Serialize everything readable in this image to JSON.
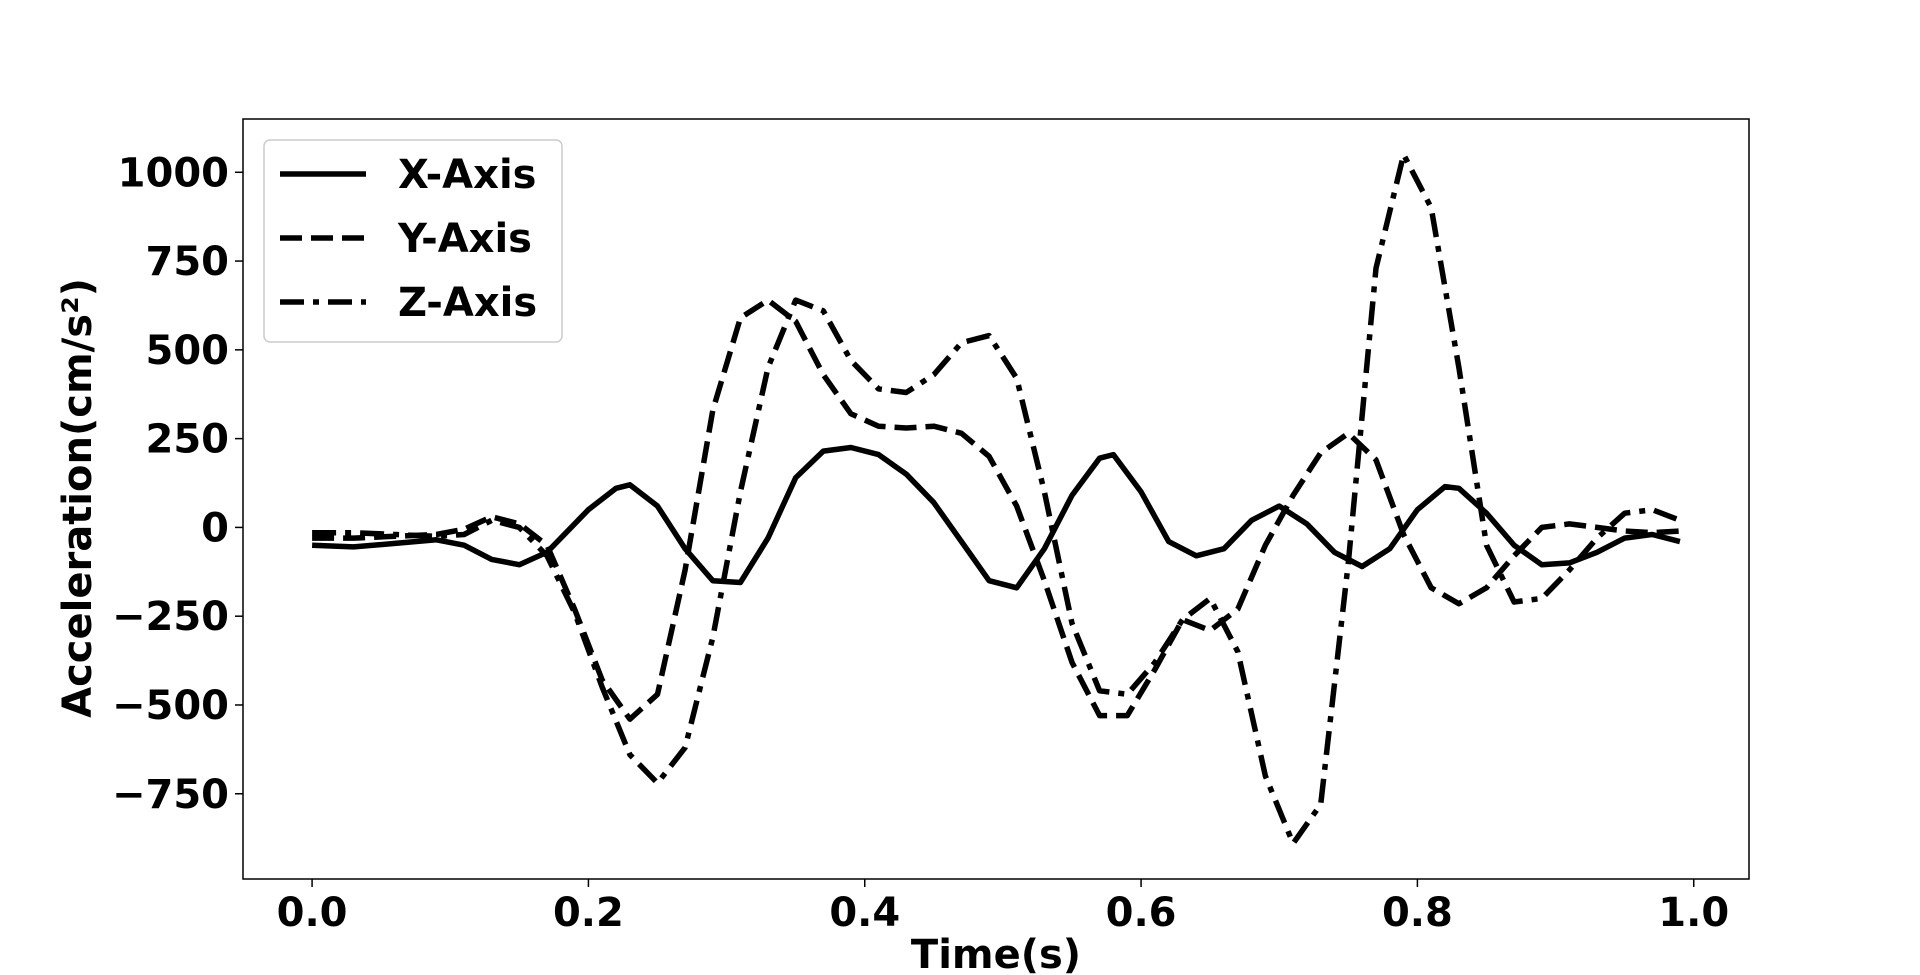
{
  "chart_data": {
    "type": "line",
    "title": "",
    "xlabel": "Time(s)",
    "ylabel": "Acceleration(cm/s²)",
    "xlim": [
      -0.05,
      1.04
    ],
    "ylim": [
      -990,
      1150
    ],
    "xticks": [
      0.0,
      0.2,
      0.4,
      0.6,
      0.8,
      1.0
    ],
    "xtick_labels": [
      "0.0",
      "0.2",
      "0.4",
      "0.6",
      "0.8",
      "1.0"
    ],
    "yticks": [
      1000,
      750,
      500,
      250,
      0,
      -250,
      -500,
      -750
    ],
    "ytick_labels": [
      "1000",
      "750",
      "500",
      "250",
      "0",
      "−250",
      "−500",
      "−750"
    ],
    "grid": false,
    "legend_position": "top-left",
    "series": [
      {
        "name": "X-Axis",
        "style": "solid",
        "color": "#000000",
        "x": [
          0,
          0.03,
          0.06,
          0.09,
          0.11,
          0.13,
          0.15,
          0.17,
          0.2,
          0.22,
          0.23,
          0.25,
          0.27,
          0.29,
          0.31,
          0.33,
          0.35,
          0.37,
          0.39,
          0.41,
          0.43,
          0.45,
          0.47,
          0.49,
          0.51,
          0.53,
          0.55,
          0.57,
          0.58,
          0.6,
          0.62,
          0.64,
          0.66,
          0.68,
          0.7,
          0.72,
          0.74,
          0.76,
          0.78,
          0.8,
          0.82,
          0.83,
          0.85,
          0.87,
          0.89,
          0.91,
          0.93,
          0.95,
          0.97,
          0.99
        ],
        "y": [
          -50,
          -55,
          -45,
          -35,
          -50,
          -90,
          -105,
          -70,
          50,
          110,
          120,
          60,
          -60,
          -150,
          -155,
          -30,
          140,
          215,
          225,
          205,
          150,
          70,
          -40,
          -150,
          -170,
          -60,
          90,
          195,
          205,
          100,
          -40,
          -80,
          -60,
          20,
          60,
          10,
          -70,
          -110,
          -60,
          50,
          115,
          110,
          40,
          -50,
          -105,
          -100,
          -70,
          -30,
          -20,
          -40
        ]
      },
      {
        "name": "Y-Axis",
        "style": "dashed",
        "color": "#000000",
        "x": [
          0,
          0.03,
          0.06,
          0.09,
          0.11,
          0.13,
          0.15,
          0.17,
          0.19,
          0.21,
          0.23,
          0.25,
          0.27,
          0.29,
          0.31,
          0.33,
          0.35,
          0.37,
          0.39,
          0.41,
          0.43,
          0.45,
          0.47,
          0.49,
          0.51,
          0.53,
          0.55,
          0.57,
          0.59,
          0.61,
          0.63,
          0.65,
          0.67,
          0.69,
          0.71,
          0.73,
          0.75,
          0.77,
          0.79,
          0.81,
          0.83,
          0.85,
          0.87,
          0.89,
          0.91,
          0.93,
          0.95,
          0.97,
          0.99
        ],
        "y": [
          -30,
          -30,
          -25,
          -20,
          -5,
          30,
          10,
          -50,
          -230,
          -430,
          -540,
          -470,
          -120,
          330,
          590,
          640,
          580,
          430,
          320,
          285,
          280,
          285,
          265,
          200,
          60,
          -150,
          -380,
          -530,
          -530,
          -400,
          -260,
          -290,
          -230,
          -50,
          90,
          210,
          265,
          190,
          -20,
          -170,
          -215,
          -170,
          -80,
          0,
          10,
          0,
          -10,
          -15,
          -10
        ]
      },
      {
        "name": "Z-Axis",
        "style": "dashdot",
        "color": "#000000",
        "x": [
          0,
          0.03,
          0.06,
          0.09,
          0.11,
          0.13,
          0.15,
          0.17,
          0.19,
          0.21,
          0.23,
          0.25,
          0.27,
          0.29,
          0.31,
          0.33,
          0.35,
          0.37,
          0.39,
          0.41,
          0.43,
          0.45,
          0.47,
          0.49,
          0.51,
          0.53,
          0.55,
          0.57,
          0.59,
          0.61,
          0.63,
          0.65,
          0.67,
          0.69,
          0.71,
          0.73,
          0.75,
          0.77,
          0.79,
          0.81,
          0.83,
          0.85,
          0.87,
          0.89,
          0.91,
          0.93,
          0.95,
          0.97,
          0.99
        ],
        "y": [
          -15,
          -15,
          -20,
          -25,
          -20,
          20,
          0,
          -80,
          -240,
          -450,
          -640,
          -720,
          -620,
          -310,
          100,
          450,
          640,
          610,
          470,
          390,
          380,
          430,
          520,
          540,
          420,
          100,
          -270,
          -460,
          -470,
          -380,
          -260,
          -200,
          -350,
          -700,
          -890,
          -780,
          -100,
          730,
          1050,
          900,
          450,
          -50,
          -210,
          -200,
          -120,
          -30,
          40,
          50,
          20
        ]
      }
    ]
  }
}
